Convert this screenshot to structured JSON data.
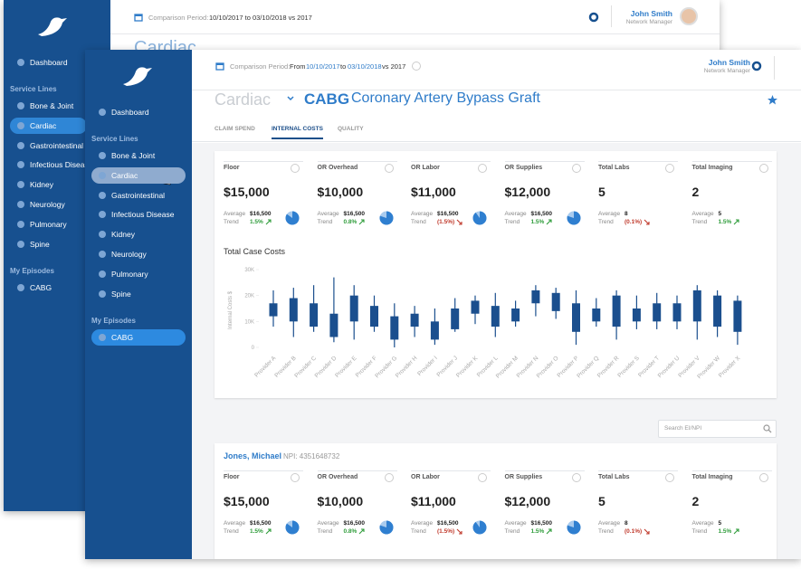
{
  "back": {
    "header": {
      "comparison_label": "Comparison Period:",
      "range": "10/10/2017 to 03/10/2018 vs 2017",
      "user_name": "John Smith",
      "user_role": "Network Manager"
    },
    "page_title": "Cardiac",
    "sidebar": {
      "dashboard": "Dashboard",
      "service_lines_heading": "Service Lines",
      "service_lines": [
        "Bone & Joint",
        "Cardiac",
        "Gastrointestinal",
        "Infectious Disease",
        "Kidney",
        "Neurology",
        "Pulmonary",
        "Spine"
      ],
      "episodes_heading": "My Episodes",
      "episodes": [
        "CABG"
      ]
    }
  },
  "front": {
    "header": {
      "comparison_label": "Comparison Period:",
      "from": "From",
      "start": "10/10/2017",
      "to": "to",
      "end": "03/10/2018",
      "vs": "vs 2017",
      "user_name": "John Smith",
      "user_role": "Network Manager"
    },
    "sidebar": {
      "dashboard": "Dashboard",
      "service_lines_heading": "Service Lines",
      "service_lines": [
        "Bone & Joint",
        "Cardiac",
        "Gastrointestinal",
        "Infectious Disease",
        "Kidney",
        "Neurology",
        "Pulmonary",
        "Spine"
      ],
      "episodes_heading": "My Episodes",
      "episodes": [
        "CABG"
      ]
    },
    "breadcrumb": {
      "parent": "Cardiac",
      "code": "CABG",
      "name": "Coronary Artery Bypass Graft"
    },
    "tabs": [
      "CLAIM SPEND",
      "INTERNAL COSTS",
      "QUALITY"
    ],
    "metrics": [
      {
        "label": "Floor",
        "value": "$15,000",
        "average_label": "Average",
        "average": "$16,500",
        "trend_label": "Trend",
        "trend": "1.5%",
        "direction": "up",
        "share": 85
      },
      {
        "label": "OR Overhead",
        "value": "$10,000",
        "average_label": "Average",
        "average": "$16,500",
        "trend_label": "Trend",
        "trend": "0.8%",
        "direction": "up",
        "share": 80
      },
      {
        "label": "OR Labor",
        "value": "$11,000",
        "average_label": "Average",
        "average": "$16,500",
        "trend_label": "Trend",
        "trend": "(1.5%)",
        "direction": "down",
        "share": 90
      },
      {
        "label": "OR Supplies",
        "value": "$12,000",
        "average_label": "Average",
        "average": "$16,500",
        "trend_label": "Trend",
        "trend": "1.5%",
        "direction": "up",
        "share": 80
      },
      {
        "label": "Total Labs",
        "value": "5",
        "average_label": "Average",
        "average": "8",
        "trend_label": "Trend",
        "trend": "(0.1%)",
        "direction": "down"
      },
      {
        "label": "Total Imaging",
        "value": "2",
        "average_label": "Average",
        "average": "5",
        "trend_label": "Trend",
        "trend": "1.5%",
        "direction": "up"
      }
    ],
    "chart": {
      "type": "candlestick",
      "title": "Total Case Costs",
      "y_label": "Internal Costs $",
      "ylim": [
        0,
        30000
      ],
      "yticks": [
        0,
        {
          "value": 10000,
          "label": "10K"
        },
        {
          "value": 20000,
          "label": "20K"
        },
        {
          "value": 30000,
          "label": "30K"
        }
      ],
      "color": "#1b4f8e",
      "categories": [
        "Provider A",
        "Provider B",
        "Provider C",
        "Provider D",
        "Provider E",
        "Provider F",
        "Provider G",
        "Provider H",
        "Provider I",
        "Provider J",
        "Provider K",
        "Provider L",
        "Provider M",
        "Provider N",
        "Provider O",
        "Provider P",
        "Provider Q",
        "Provider R",
        "Provider S",
        "Provider T",
        "Provider U",
        "Provider V",
        "Provider W",
        "Provider X"
      ],
      "low": [
        8000,
        4000,
        6000,
        2000,
        3000,
        6000,
        0,
        4000,
        1000,
        6000,
        9000,
        4000,
        8000,
        12000,
        11000,
        1000,
        8000,
        3000,
        7000,
        7000,
        7000,
        3000,
        4000,
        1000
      ],
      "q1": [
        12000,
        10000,
        8000,
        4000,
        10000,
        8000,
        3000,
        8000,
        3000,
        7000,
        13000,
        8000,
        10000,
        17000,
        14000,
        6000,
        10000,
        8000,
        10000,
        10000,
        10000,
        10000,
        8000,
        6000
      ],
      "q3": [
        17000,
        19000,
        17000,
        13000,
        20000,
        16000,
        12000,
        13000,
        10000,
        15000,
        18000,
        16000,
        15000,
        22000,
        21000,
        17000,
        15000,
        20000,
        15000,
        17000,
        17000,
        22000,
        20000,
        18000
      ],
      "high": [
        22000,
        23000,
        24000,
        27000,
        24000,
        20000,
        17000,
        16000,
        15000,
        19000,
        20000,
        21000,
        18000,
        24000,
        23000,
        22000,
        19000,
        22000,
        20000,
        21000,
        20000,
        24000,
        22000,
        20000
      ]
    },
    "search_placeholder": "Search EI/NPI",
    "provider": {
      "name": "Jones, Michael",
      "npi": "NPI: 4351648732",
      "metrics": [
        {
          "label": "Floor",
          "value": "$15,000",
          "average_label": "Average",
          "average": "$16,500",
          "trend_label": "Trend",
          "trend": "1.5%",
          "direction": "up",
          "share": 85
        },
        {
          "label": "OR Overhead",
          "value": "$10,000",
          "average_label": "Average",
          "average": "$16,500",
          "trend_label": "Trend",
          "trend": "0.8%",
          "direction": "up",
          "share": 80
        },
        {
          "label": "OR Labor",
          "value": "$11,000",
          "average_label": "Average",
          "average": "$16,500",
          "trend_label": "Trend",
          "trend": "(1.5%)",
          "direction": "down",
          "share": 90
        },
        {
          "label": "OR Supplies",
          "value": "$12,000",
          "average_label": "Average",
          "average": "$16,500",
          "trend_label": "Trend",
          "trend": "1.5%",
          "direction": "up",
          "share": 80
        },
        {
          "label": "Total Labs",
          "value": "5",
          "average_label": "Average",
          "average": "8",
          "trend_label": "Trend",
          "trend": "(0.1%)",
          "direction": "down"
        },
        {
          "label": "Total Imaging",
          "value": "2",
          "average_label": "Average",
          "average": "5",
          "trend_label": "Trend",
          "trend": "1.5%",
          "direction": "up"
        }
      ]
    }
  }
}
